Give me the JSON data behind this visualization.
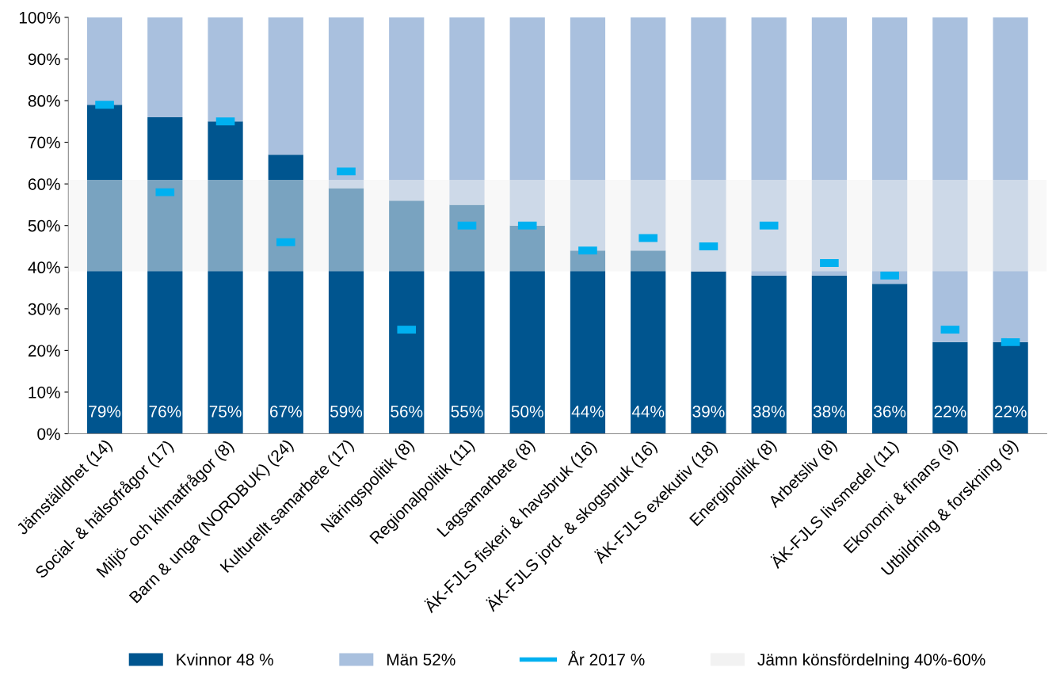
{
  "chart_data": {
    "type": "bar",
    "stacked": true,
    "categories": [
      "Jämställdhet (14)",
      "Social- & hälsofrågor (17)",
      "Miljö- och kilmatfrågor (8)",
      "Barn & unga (NORDBUK) (24)",
      "Kulturellt samarbete (17)",
      "Näringspolitik (8)",
      "Regionalpolitik (11)",
      "Lagsamarbete (8)",
      "ÄK-FJLS fiskeri & havsbruk (16)",
      "ÄK-FJLS jord- & skogsbruk (16)",
      "ÄK-FJLS exekutiv (18)",
      "Energipolitik (8)",
      "Arbetsliv (8)",
      "ÄK-FJLS livsmedel (11)",
      "Ekonomi & finans (9)",
      "Utbildning & forskning (9)"
    ],
    "series": [
      {
        "name": "Kvinnor 48 %",
        "color": "#00558f",
        "values": [
          79,
          76,
          75,
          67,
          59,
          56,
          55,
          50,
          44,
          44,
          39,
          38,
          38,
          36,
          22,
          22
        ],
        "value_labels": [
          "79%",
          "76%",
          "75%",
          "67%",
          "59%",
          "56%",
          "55%",
          "50%",
          "44%",
          "44%",
          "39%",
          "38%",
          "38%",
          "36%",
          "22%",
          "22%"
        ]
      },
      {
        "name": "Män 52%",
        "color": "#a9c0de",
        "values": [
          21,
          24,
          25,
          33,
          41,
          44,
          45,
          50,
          56,
          56,
          61,
          62,
          62,
          64,
          78,
          78
        ]
      },
      {
        "name": "År 2017 %",
        "type": "scatter",
        "color": "#00b0f0",
        "values": [
          79,
          58,
          75,
          46,
          63,
          25,
          50,
          50,
          44,
          47,
          45,
          50,
          41,
          38,
          25,
          22
        ]
      }
    ],
    "bands": [
      {
        "axis": "y",
        "from": 39,
        "to": 61,
        "label": "Jämn könsfördelning 40%-60%",
        "color": "#f2f2f2"
      }
    ],
    "ylim": [
      0,
      100
    ],
    "yticks": [
      {
        "value": 0,
        "label": "0%"
      },
      {
        "value": 10,
        "label": "10%"
      },
      {
        "value": 20,
        "label": "20%"
      },
      {
        "value": 30,
        "label": "30%"
      },
      {
        "value": 40,
        "label": "40%"
      },
      {
        "value": 50,
        "label": "50%"
      },
      {
        "value": 60,
        "label": "60%"
      },
      {
        "value": 70,
        "label": "70%"
      },
      {
        "value": 80,
        "label": "80%"
      },
      {
        "value": 90,
        "label": "90%"
      },
      {
        "value": 100,
        "label": "100%"
      }
    ],
    "grid": false,
    "legend": "bottom"
  }
}
